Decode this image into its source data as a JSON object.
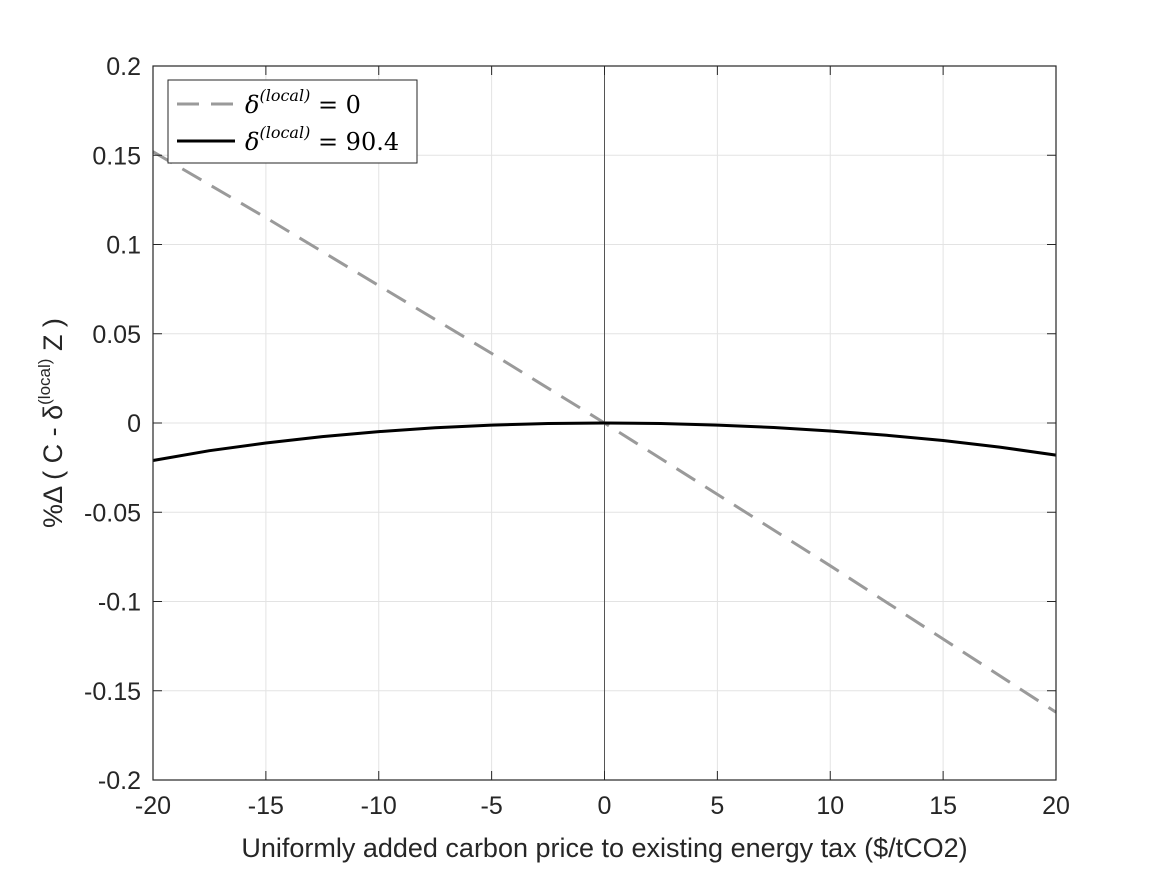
{
  "chart_data": {
    "type": "line",
    "title": "",
    "xlabel": "Uniformly added carbon price to existing energy tax ($/tCO2)",
    "ylabel": {
      "prefix": "%Δ ( C - δ",
      "sup": "(local)",
      "suffix": " Z )"
    },
    "xlim": [
      -20,
      20
    ],
    "ylim": [
      -0.2,
      0.2
    ],
    "x_ticks": [
      -20,
      -15,
      -10,
      -5,
      0,
      5,
      10,
      15,
      20
    ],
    "x_tick_labels": [
      "-20",
      "-15",
      "-10",
      "-5",
      "0",
      "5",
      "10",
      "15",
      "20"
    ],
    "y_ticks": [
      -0.2,
      -0.15,
      -0.1,
      -0.05,
      0,
      0.05,
      0.1,
      0.15,
      0.2
    ],
    "y_tick_labels": [
      "-0.2",
      "-0.15",
      "-0.1",
      "-0.05",
      "0",
      "0.05",
      "0.1",
      "0.15",
      "0.2"
    ],
    "grid": true,
    "legend_position": "top-left",
    "zero_line_x": 0,
    "series": [
      {
        "name": "δ(local) = 0",
        "legend": {
          "base": "δ",
          "sup": "(local)",
          "rest": " = 0"
        },
        "color": "#9a9a9a",
        "style": "dashed",
        "x": [
          -20,
          -15,
          -10,
          -5,
          0,
          5,
          10,
          15,
          20
        ],
        "y": [
          0.152,
          0.115,
          0.077,
          0.039,
          0.0,
          -0.04,
          -0.08,
          -0.121,
          -0.162
        ]
      },
      {
        "name": "δ(local) = 90.4",
        "legend": {
          "base": "δ",
          "sup": "(local)",
          "rest": " = 90.4"
        },
        "color": "#000000",
        "style": "solid",
        "x": [
          -20,
          -17.5,
          -15,
          -12.5,
          -10,
          -7.5,
          -5,
          -2.5,
          0,
          2.5,
          5,
          7.5,
          10,
          12.5,
          15,
          17.5,
          20
        ],
        "y": [
          -0.021,
          -0.0155,
          -0.0112,
          -0.0076,
          -0.0048,
          -0.0027,
          -0.0012,
          -0.0003,
          0.0,
          -0.0003,
          -0.0012,
          -0.0025,
          -0.0045,
          -0.0069,
          -0.0098,
          -0.0135,
          -0.018
        ]
      }
    ]
  }
}
